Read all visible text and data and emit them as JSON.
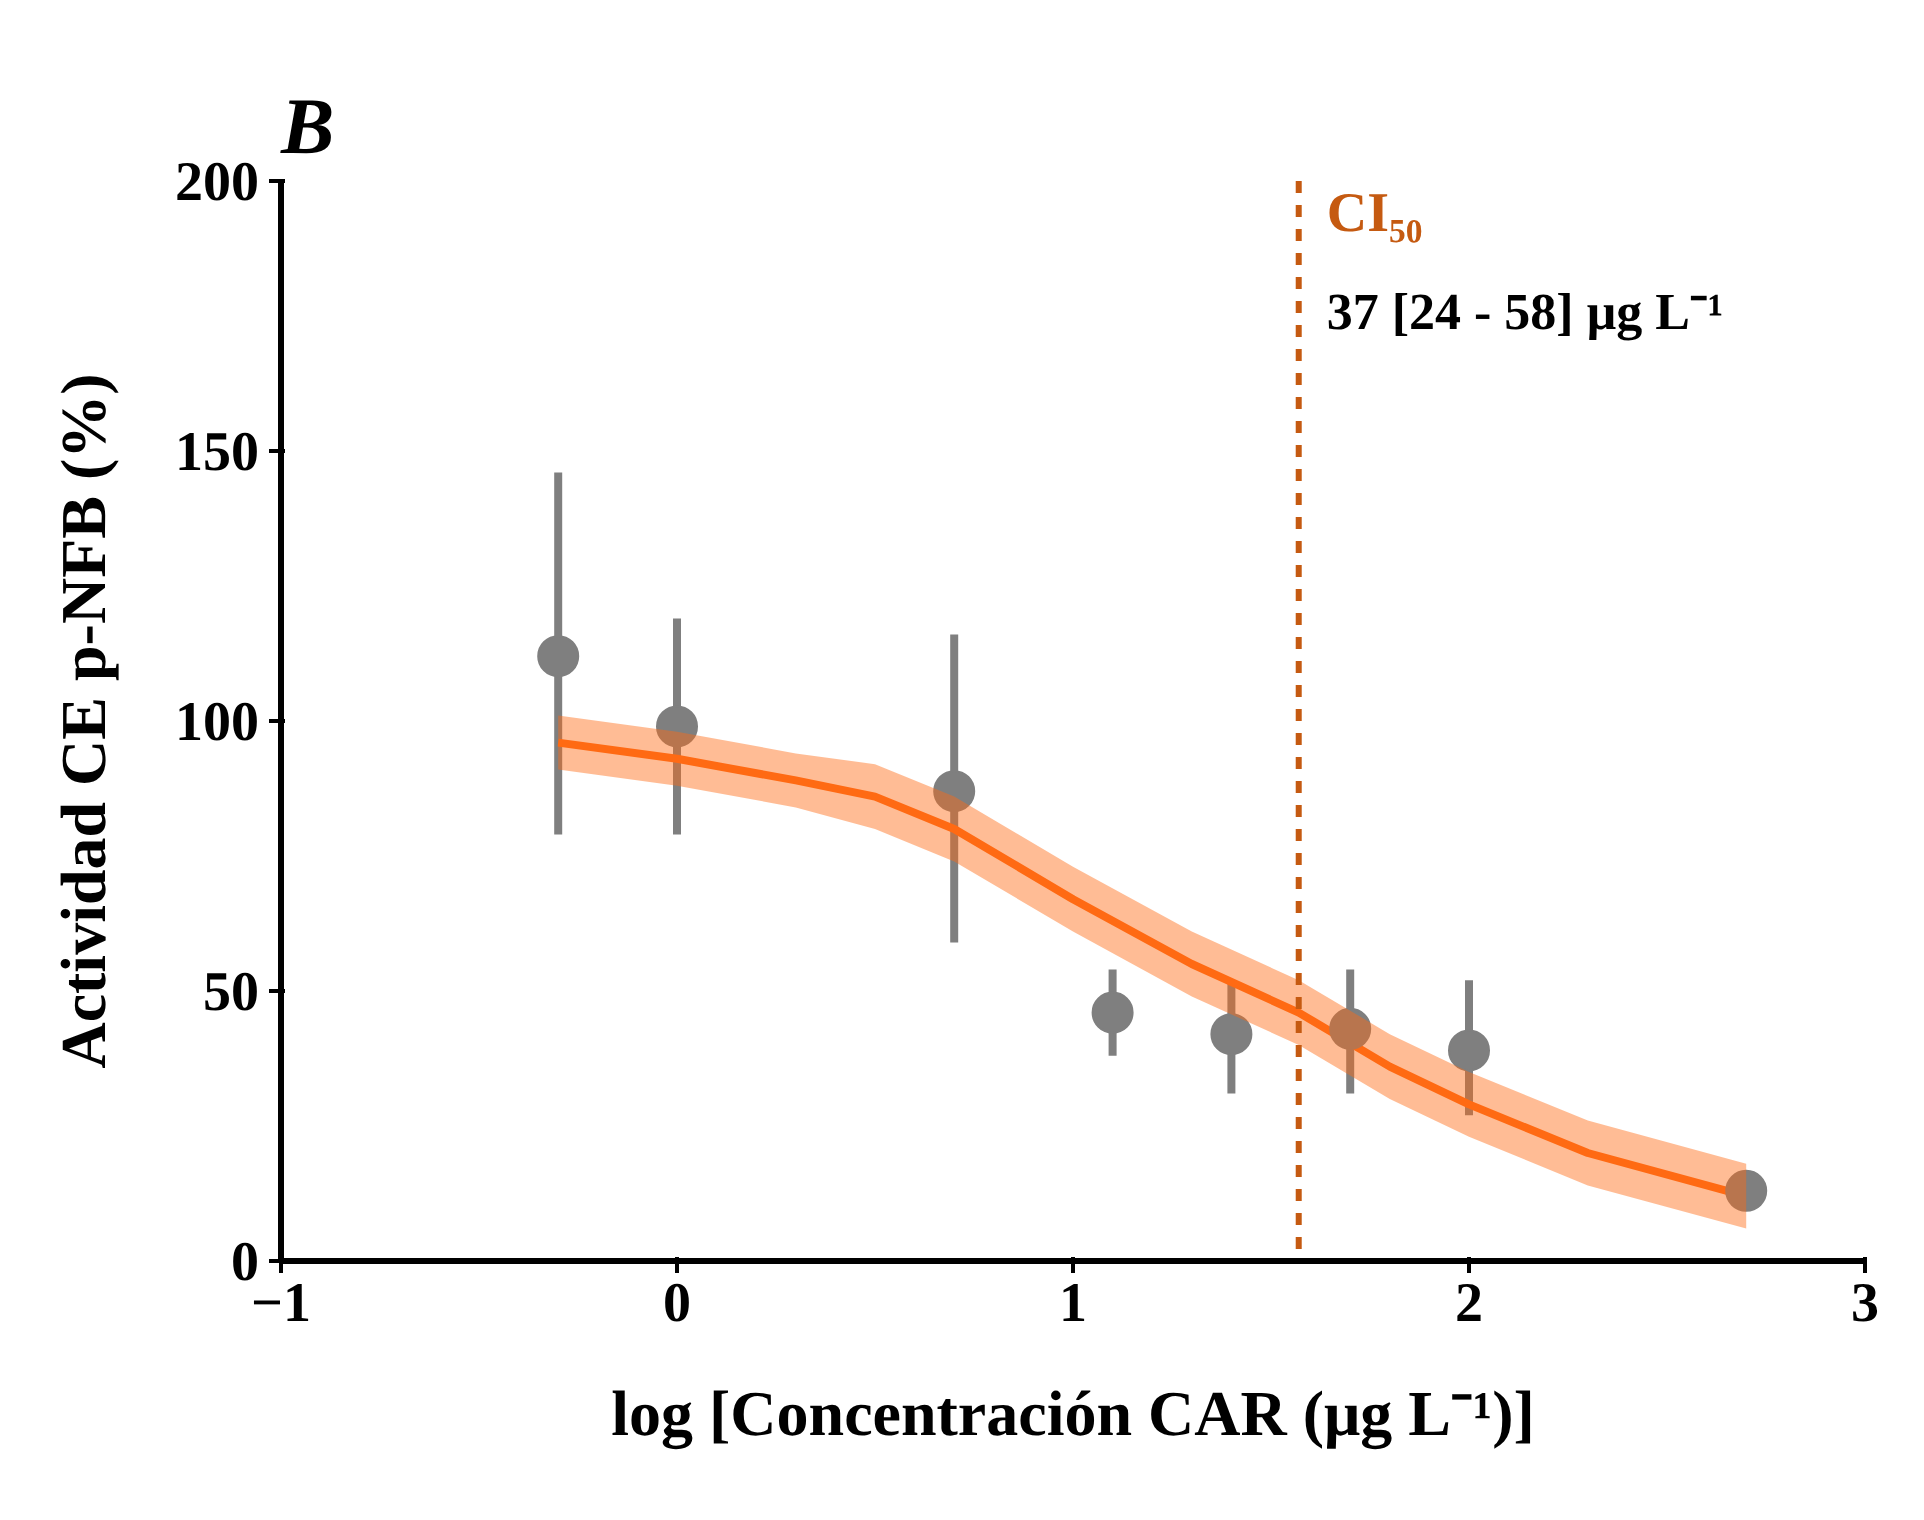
{
  "chart_data": {
    "type": "scatter",
    "title": "B",
    "xlabel": "log [Concentración CAR (μg L⁻¹)]",
    "ylabel": "Actividad CE p-NFB (%)",
    "xlim": [
      -1,
      3
    ],
    "xticks": [
      -1,
      0,
      1,
      2,
      3
    ],
    "ylim": [
      0,
      200
    ],
    "yticks": [
      0,
      50,
      100,
      150,
      200
    ],
    "grid": false,
    "series": [
      {
        "type": "line",
        "color": "#ff6a13",
        "x": [
          -0.3,
          0,
          0.3,
          0.5,
          0.7,
          1.0,
          1.3,
          1.57,
          1.8,
          2.0,
          2.3,
          2.7
        ],
        "values": [
          96,
          93,
          89,
          86,
          80,
          67,
          55,
          46,
          36,
          29,
          20,
          12
        ],
        "lower": [
          91,
          88,
          84,
          80,
          74,
          61,
          49,
          40,
          30,
          23,
          14,
          6
        ],
        "upper": [
          101,
          98,
          94,
          92,
          86,
          73,
          61,
          52,
          42,
          35,
          26,
          18
        ],
        "line_style": "solid",
        "marker": "none"
      },
      {
        "color": "#7f7f7f",
        "marker": "circle",
        "x": [
          -0.3,
          0,
          0.7,
          1.1,
          1.4,
          1.7,
          2.0,
          2.7
        ],
        "values": [
          112,
          99,
          87,
          46,
          42,
          43,
          39,
          13
        ],
        "errors": [
          [
            79,
            146
          ],
          [
            79,
            119
          ],
          [
            59,
            116
          ],
          [
            38,
            54
          ],
          [
            31,
            52
          ],
          [
            31,
            54
          ],
          [
            27,
            52
          ],
          null
        ]
      }
    ],
    "ref_lines": [
      {
        "axis": "x",
        "value": 1.57,
        "label": "CI₅₀",
        "color": "#c55a11",
        "line_style": "dashed"
      }
    ],
    "annotations": [
      "37 [24 - 58] μg L⁻¹"
    ]
  }
}
